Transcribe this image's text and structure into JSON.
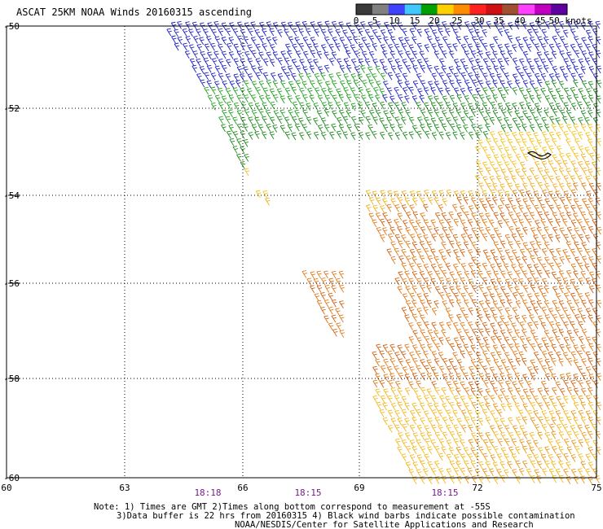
{
  "title": "ASCAT 25KM NOAA Winds 20160315 ascending",
  "colorbar": {
    "labels": [
      "0",
      "5",
      "10",
      "15",
      "20",
      "25",
      "30",
      "35",
      "40",
      "45",
      "50 knots"
    ],
    "colors": [
      "#3a3a3a",
      "#808080",
      "#4040ff",
      "#40c8ff",
      "#00a000",
      "#ffd000",
      "#ff8c00",
      "#ff2020",
      "#d01010",
      "#a05030",
      "#ff40ff",
      "#c000c0",
      "#6000a0"
    ]
  },
  "map": {
    "lon_range": [
      60,
      75
    ],
    "lat_range": [
      -60,
      -50
    ],
    "lon_ticks": [
      "60",
      "63",
      "66",
      "69",
      "72",
      "75"
    ],
    "lat_ticks": [
      "-50",
      "-52",
      "-54",
      "-56",
      "-58",
      "-60"
    ],
    "time_labels": [
      "18:18",
      "18:15",
      "18:15"
    ]
  },
  "notes": [
    "Note: 1) Times are GMT 2)Times along bottom correspond to measurement at -55S",
    "3)Data buffer is 22 hrs from 20160315 4) Black wind barbs indicate possible contamination",
    "NOAA/NESDIS/Center for Satellite Applications and Research"
  ]
}
